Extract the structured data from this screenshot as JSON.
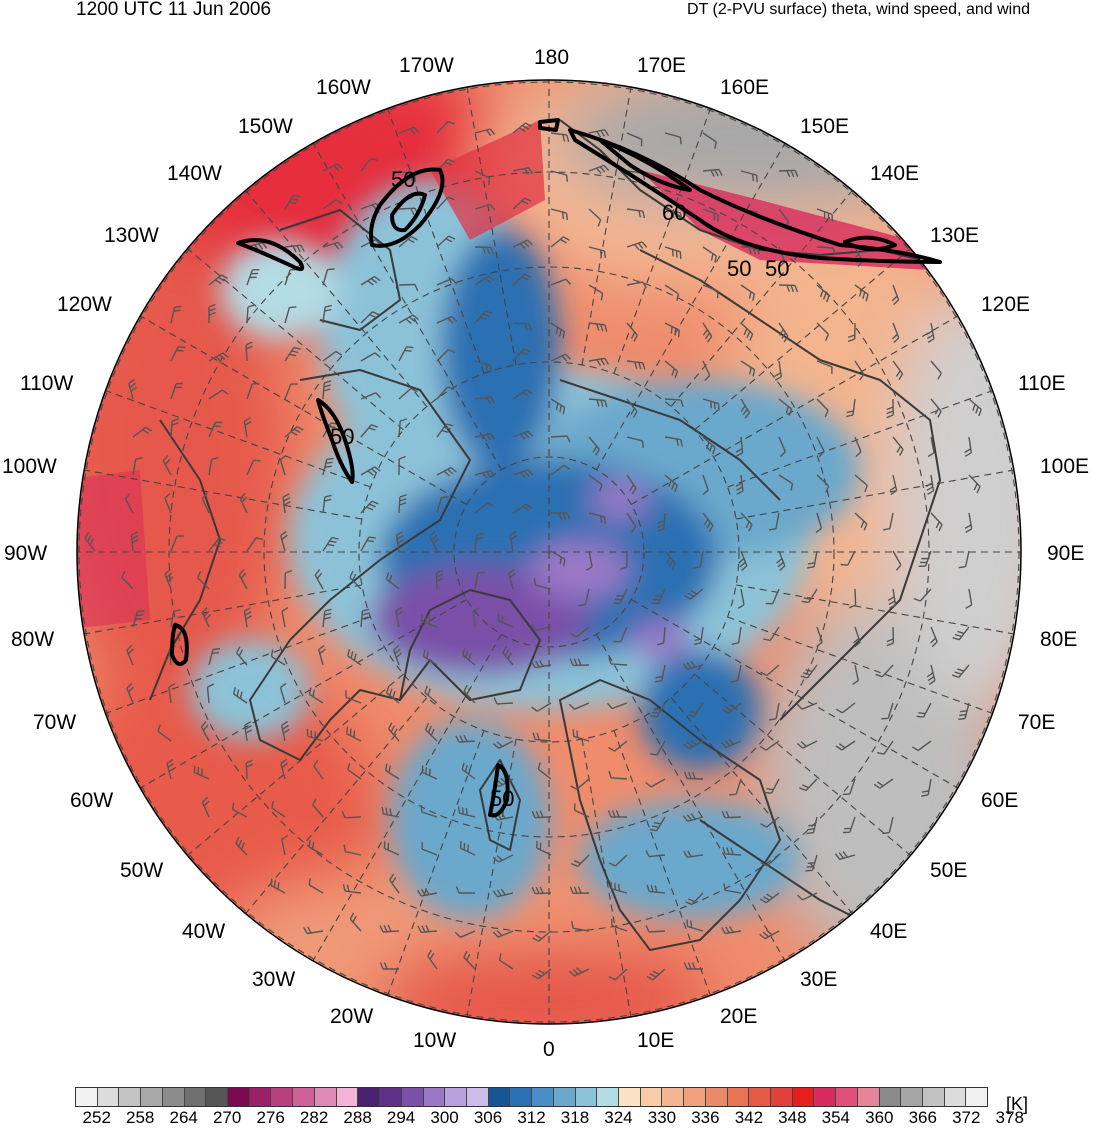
{
  "header": {
    "datetime": "1200 UTC 11 Jun 2006",
    "title": "DT (2-PVU surface) theta, wind speed, and wind"
  },
  "map": {
    "projection": "north polar stereographic",
    "longitude_labels": [
      "180",
      "170E",
      "160E",
      "150E",
      "140E",
      "130E",
      "120E",
      "110E",
      "100E",
      "90E",
      "80E",
      "70E",
      "60E",
      "50E",
      "40E",
      "30E",
      "20E",
      "10E",
      "0",
      "10W",
      "20W",
      "30W",
      "40W",
      "50W",
      "60W",
      "70W",
      "80W",
      "90W",
      "100W",
      "110W",
      "120W",
      "130W",
      "140W",
      "150W",
      "160W",
      "170W"
    ],
    "wind_speed_contours": [
      "50",
      "50",
      "60",
      "50",
      "50",
      "50",
      "50"
    ]
  },
  "colorbar": {
    "unit": "[K]",
    "tick_labels": [
      "252",
      "258",
      "264",
      "270",
      "276",
      "282",
      "288",
      "294",
      "300",
      "306",
      "312",
      "318",
      "324",
      "330",
      "336",
      "342",
      "348",
      "354",
      "360",
      "366",
      "372",
      "378"
    ],
    "colors": [
      "#f2f2f2",
      "#dcdcdc",
      "#c3c3c3",
      "#a8a8a8",
      "#8c8c8c",
      "#707070",
      "#565656",
      "#7a0a50",
      "#9a2068",
      "#b8407f",
      "#cf6098",
      "#e08ab8",
      "#f3b4d8",
      "#4a2070",
      "#5e3088",
      "#7a50a8",
      "#9a78c6",
      "#b7a0dc",
      "#ccbde8",
      "#155796",
      "#2a70b2",
      "#4a8ec8",
      "#6aa8cc",
      "#8cc2d8",
      "#b4dce5",
      "#fbe2c4",
      "#f8cca8",
      "#f4b692",
      "#f0a07a",
      "#eb8a68",
      "#e87458",
      "#e65a48",
      "#e2403c",
      "#e81e1e",
      "#d82a5c",
      "#e05078",
      "#e6849a",
      "#8a8a8a",
      "#a6a6a6",
      "#c2c2c2",
      "#dcdcdc",
      "#f0f0f0"
    ]
  }
}
